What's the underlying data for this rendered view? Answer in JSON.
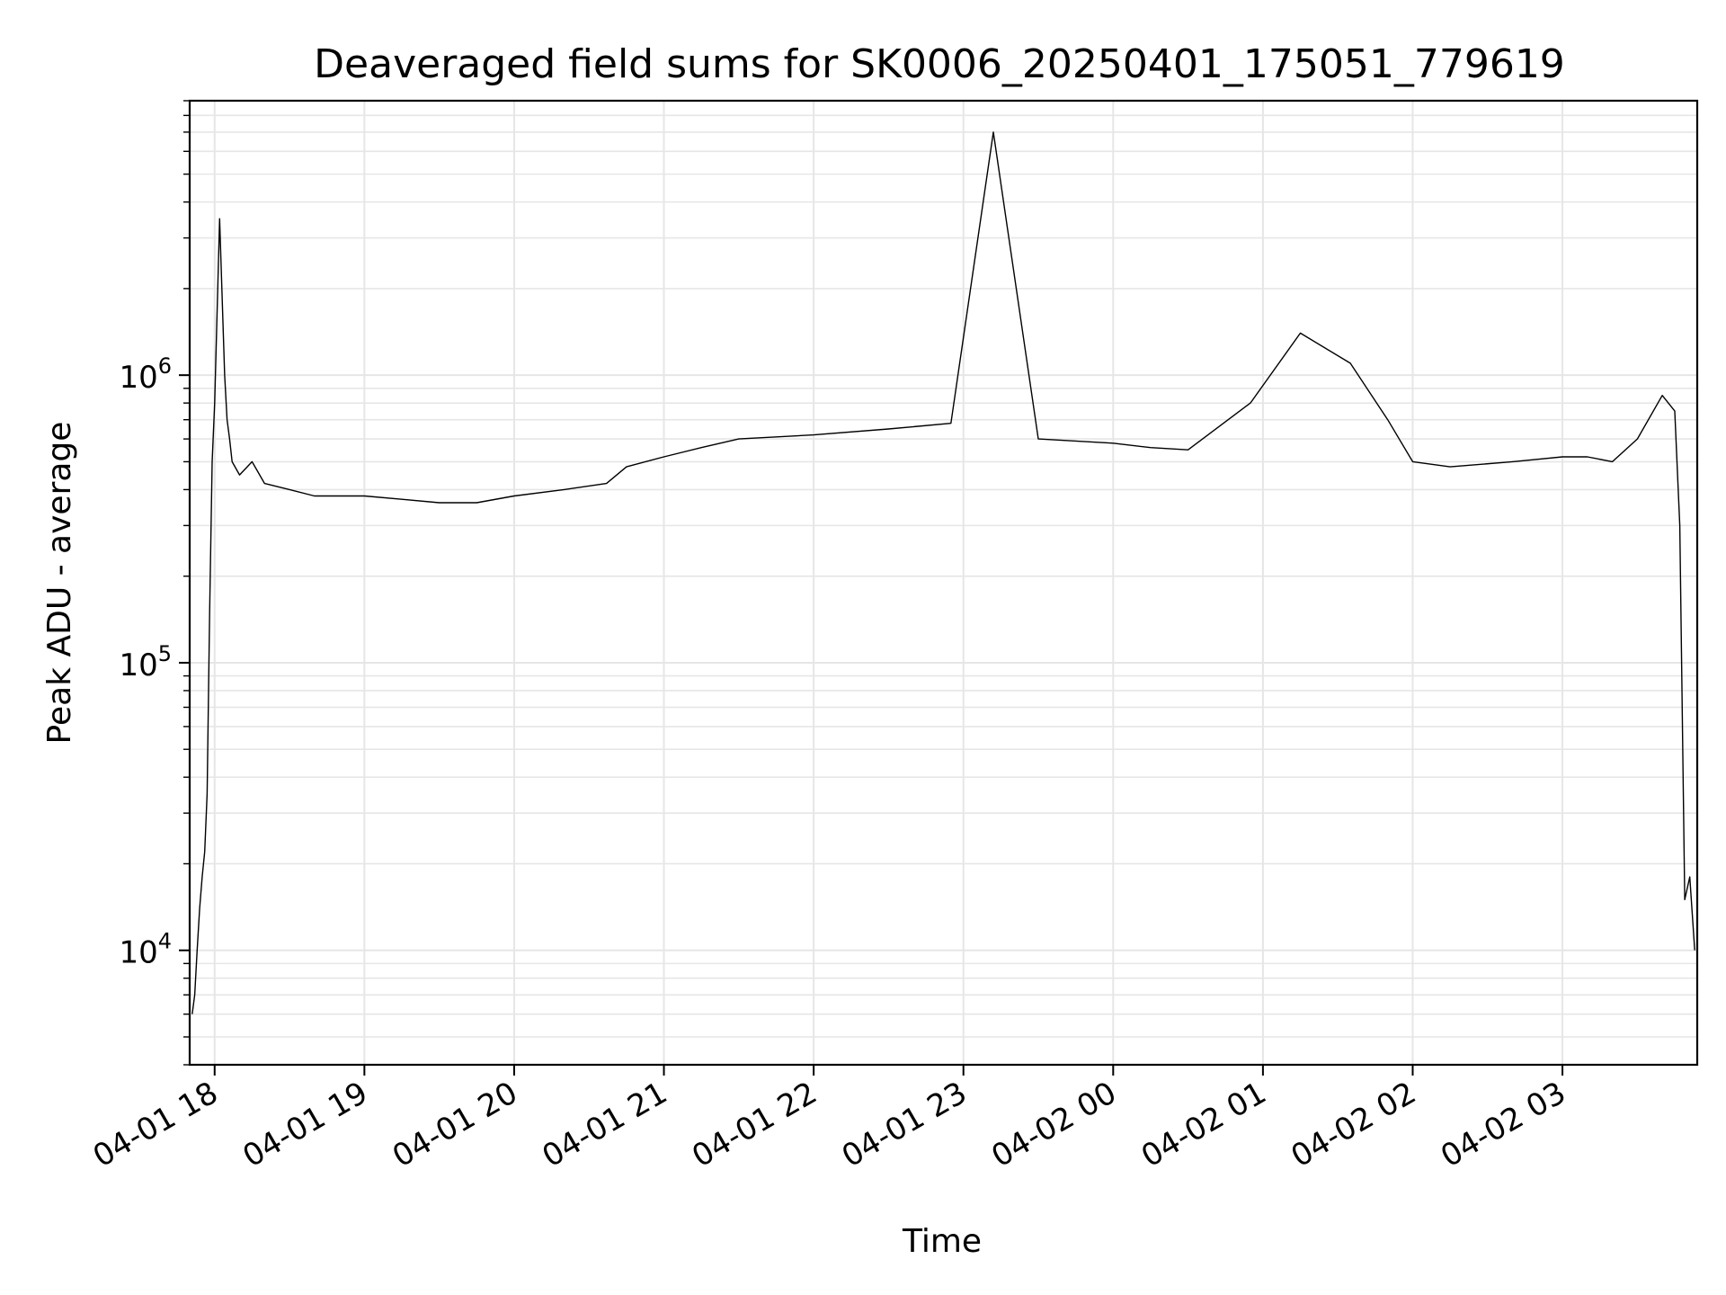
{
  "chart_data": {
    "type": "line",
    "title": "Deaveraged field sums for SK0006_20250401_175051_779619",
    "xlabel": "Time",
    "ylabel": "Peak ADU - average",
    "yscale": "log",
    "ylim": [
      4000,
      9000000
    ],
    "xlim": [
      "2025-04-01 17:50",
      "2025-04-02 03:54"
    ],
    "grid": true,
    "series_color": "#000000",
    "x_ticks": [
      {
        "at": "2025-04-01 18:00",
        "label": "04-01 18"
      },
      {
        "at": "2025-04-01 19:00",
        "label": "04-01 19"
      },
      {
        "at": "2025-04-01 20:00",
        "label": "04-01 20"
      },
      {
        "at": "2025-04-01 21:00",
        "label": "04-01 21"
      },
      {
        "at": "2025-04-01 22:00",
        "label": "04-01 22"
      },
      {
        "at": "2025-04-01 23:00",
        "label": "04-01 23"
      },
      {
        "at": "2025-04-02 00:00",
        "label": "04-02 00"
      },
      {
        "at": "2025-04-02 01:00",
        "label": "04-02 01"
      },
      {
        "at": "2025-04-02 02:00",
        "label": "04-02 02"
      },
      {
        "at": "2025-04-02 03:00",
        "label": "04-02 03"
      }
    ],
    "y_ticks": [
      {
        "value": 10000,
        "base": "10",
        "exp": "4"
      },
      {
        "value": 100000,
        "base": "10",
        "exp": "5"
      },
      {
        "value": 1000000,
        "base": "10",
        "exp": "6"
      }
    ],
    "series": [
      {
        "x": [
          "2025-04-01 17:51",
          "2025-04-01 17:52",
          "2025-04-01 17:53",
          "2025-04-01 17:54",
          "2025-04-01 17:55",
          "2025-04-01 17:56",
          "2025-04-01 17:57",
          "2025-04-01 17:58",
          "2025-04-01 17:59",
          "2025-04-01 18:00",
          "2025-04-01 18:02",
          "2025-04-01 18:04",
          "2025-04-01 18:05",
          "2025-04-01 18:06",
          "2025-04-01 18:07",
          "2025-04-01 18:10",
          "2025-04-01 18:15",
          "2025-04-01 18:20",
          "2025-04-01 18:30",
          "2025-04-01 18:40",
          "2025-04-01 18:50",
          "2025-04-01 19:00",
          "2025-04-01 19:15",
          "2025-04-01 19:30",
          "2025-04-01 19:45",
          "2025-04-01 20:00",
          "2025-04-01 20:20",
          "2025-04-01 20:37",
          "2025-04-01 20:45",
          "2025-04-01 21:00",
          "2025-04-01 21:15",
          "2025-04-01 21:30",
          "2025-04-01 22:00",
          "2025-04-01 22:30",
          "2025-04-01 22:55",
          "2025-04-01 23:12",
          "2025-04-01 23:30",
          "2025-04-02 00:00",
          "2025-04-02 00:15",
          "2025-04-02 00:30",
          "2025-04-02 00:55",
          "2025-04-02 01:15",
          "2025-04-02 01:35",
          "2025-04-02 01:50",
          "2025-04-02 02:00",
          "2025-04-02 02:15",
          "2025-04-02 02:40",
          "2025-04-02 03:00",
          "2025-04-02 03:10",
          "2025-04-02 03:20",
          "2025-04-02 03:30",
          "2025-04-02 03:40",
          "2025-04-02 03:45",
          "2025-04-02 03:47",
          "2025-04-02 03:49",
          "2025-04-02 03:51",
          "2025-04-02 03:53"
        ],
        "y": [
          6000,
          7000,
          10000,
          14000,
          18000,
          22000,
          35000,
          150000,
          500000,
          800000,
          3500000,
          1000000,
          700000,
          600000,
          500000,
          450000,
          500000,
          420000,
          400000,
          380000,
          380000,
          380000,
          370000,
          360000,
          360000,
          380000,
          400000,
          420000,
          480000,
          520000,
          560000,
          600000,
          620000,
          650000,
          680000,
          7000000,
          600000,
          580000,
          560000,
          550000,
          800000,
          1400000,
          1100000,
          700000,
          500000,
          480000,
          500000,
          520000,
          520000,
          500000,
          600000,
          850000,
          750000,
          300000,
          15000,
          18000,
          10000
        ]
      }
    ]
  }
}
